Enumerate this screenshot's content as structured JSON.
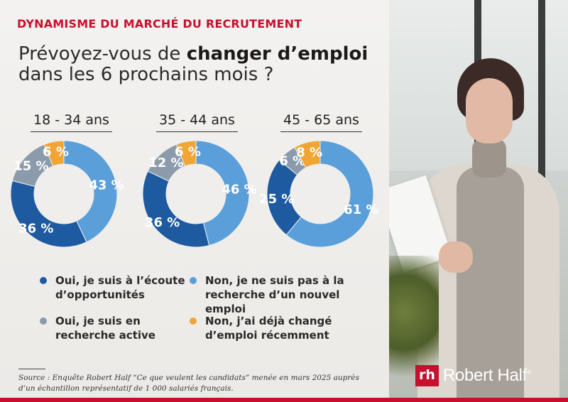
{
  "header": {
    "kicker": "DYNAMISME DU MARCHÉ DU RECRUTEMENT",
    "title_part1": "Prévoyez-vous de ",
    "title_bold": "changer d’emploi",
    "title_line2": "dans les 6 prochains mois ?"
  },
  "colors": {
    "brand_red": "#c8102e",
    "dark_blue": "#1e5aa0",
    "light_blue": "#5a9fd9",
    "gray": "#8c9bab",
    "orange": "#f0a535"
  },
  "chart_data": {
    "type": "donut",
    "series_labels": [
      "Oui, je suis à l’écoute d’opportunités",
      "Non, je ne suis pas à la recherche d’un nouvel emploi",
      "Oui, je suis en recherche active",
      "Non, j’ai déjà changé d’emploi récemment"
    ],
    "charts": [
      {
        "title": "18 - 34 ans",
        "slices": [
          {
            "label": "Non, je ne suis pas à la recherche d’un nouvel emploi",
            "value": 43,
            "display": "43 %",
            "color": "#5a9fd9"
          },
          {
            "label": "Oui, je suis à l’écoute d’opportunités",
            "value": 36,
            "display": "36 %",
            "color": "#1e5aa0"
          },
          {
            "label": "Oui, je suis en recherche active",
            "value": 15,
            "display": "15 %",
            "color": "#8c9bab"
          },
          {
            "label": "Non, j’ai déjà changé d’emploi récemment",
            "value": 6,
            "display": "6 %",
            "color": "#f0a535"
          }
        ]
      },
      {
        "title": "35 - 44 ans",
        "slices": [
          {
            "label": "Non, je ne suis pas à la recherche d’un nouvel emploi",
            "value": 46,
            "display": "46 %",
            "color": "#5a9fd9"
          },
          {
            "label": "Oui, je suis à l’écoute d’opportunités",
            "value": 36,
            "display": "36 %",
            "color": "#1e5aa0"
          },
          {
            "label": "Oui, je suis en recherche active",
            "value": 12,
            "display": "12 %",
            "color": "#8c9bab"
          },
          {
            "label": "Non, j’ai déjà changé d’emploi récemment",
            "value": 6,
            "display": "6 %",
            "color": "#f0a535"
          }
        ]
      },
      {
        "title": "45 - 65 ans",
        "slices": [
          {
            "label": "Non, je ne suis pas à la recherche d’un nouvel emploi",
            "value": 61,
            "display": "61 %",
            "color": "#5a9fd9"
          },
          {
            "label": "Oui, je suis à l’écoute d’opportunités",
            "value": 25,
            "display": "25 %",
            "color": "#1e5aa0"
          },
          {
            "label": "Oui, je suis en recherche active",
            "value": 6,
            "display": "6 %",
            "color": "#8c9bab"
          },
          {
            "label": "Non, j’ai déjà changé d’emploi récemment",
            "value": 8,
            "display": "8 %",
            "color": "#f0a535"
          }
        ]
      }
    ]
  },
  "legend": [
    {
      "label": "Oui, je suis à l’écoute d’opportunités",
      "color": "#1e5aa0"
    },
    {
      "label": "Non, je ne suis pas à la recherche d’un nouvel emploi",
      "color": "#5a9fd9"
    },
    {
      "label": "Oui, je suis en recherche active",
      "color": "#8c9bab"
    },
    {
      "label": "Non, j’ai déjà changé d’emploi récemment",
      "color": "#f0a535"
    }
  ],
  "footer": {
    "source": "Source : Enquête Robert Half “Ce que veulent les candidats” menée en mars 2025 auprès d’un échantillon représentatif de 1 000 salariés français."
  },
  "logo": {
    "mark": "rh",
    "name": "Robert Half",
    "trademark": "®"
  }
}
